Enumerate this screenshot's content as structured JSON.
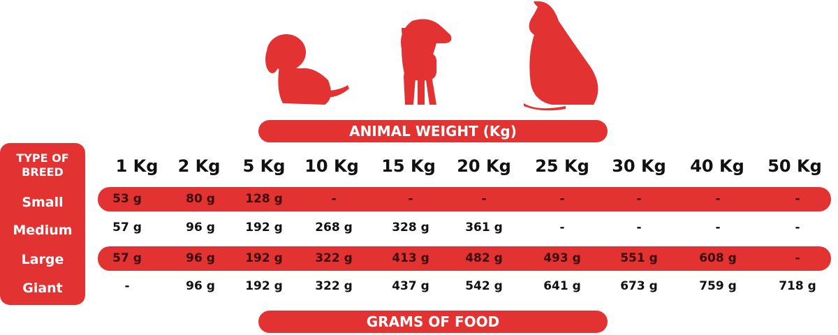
{
  "colors": {
    "accent": "#e23332"
  },
  "header_banner": "ANIMAL WEIGHT (Kg)",
  "footer_banner": "GRAMS OF FOOD",
  "icons": [
    "puppy-sitting-icon",
    "puppy-standing-icon",
    "dog-sitting-icon"
  ],
  "chart_data": {
    "type": "table",
    "row_header": "TYPE OF BREED",
    "columns": [
      "1 Kg",
      "2 Kg",
      "5 Kg",
      "10 Kg",
      "15 Kg",
      "20 Kg",
      "25 Kg",
      "30 Kg",
      "40 Kg",
      "50 Kg"
    ],
    "rows": [
      {
        "label": "Small",
        "values": [
          "53 g",
          "80 g",
          "128 g",
          "-",
          "-",
          "-",
          "-",
          "-",
          "-",
          "-"
        ]
      },
      {
        "label": "Medium",
        "values": [
          "57 g",
          "96 g",
          "192  g",
          "268 g",
          "328 g",
          "361 g",
          "-",
          "-",
          "-",
          "-"
        ]
      },
      {
        "label": "Large",
        "values": [
          "57 g",
          "96 g",
          "192 g",
          "322 g",
          "413 g",
          "482 g",
          "493 g",
          "551 g",
          "608 g",
          "-"
        ]
      },
      {
        "label": "Giant",
        "values": [
          "-",
          "96 g",
          "192 g",
          "322 g",
          "437 g",
          "542 g",
          "641 g",
          "673 g",
          "759 g",
          "718 g"
        ]
      }
    ]
  }
}
